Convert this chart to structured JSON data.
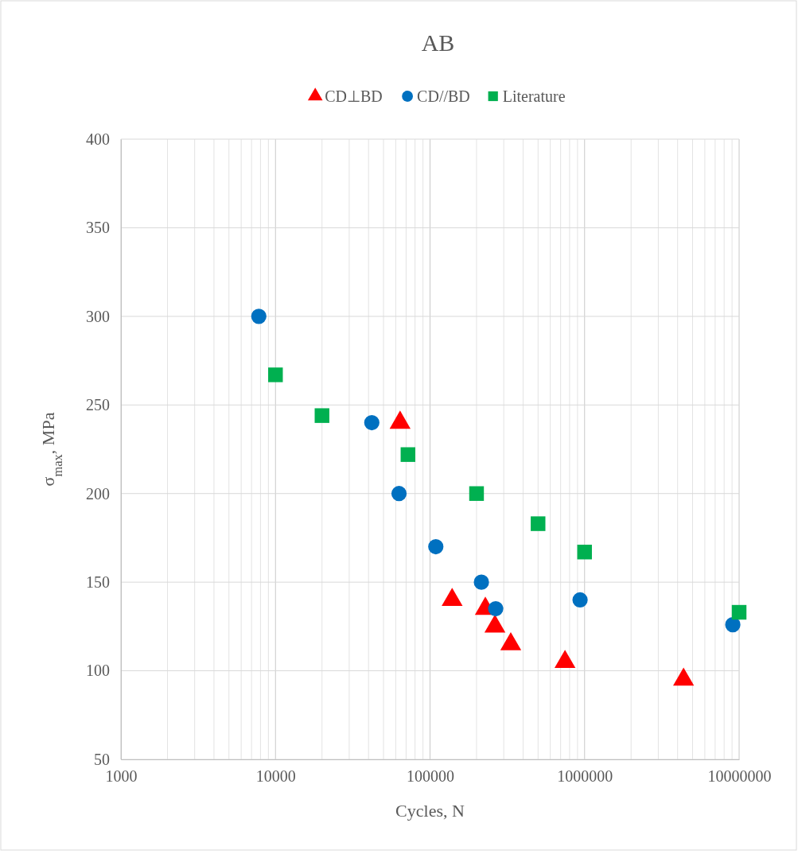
{
  "chart_data": {
    "type": "scatter",
    "title": "AB",
    "xlabel": "Cycles, N",
    "ylabel": "σ$_{max}$, MPa",
    "log": "x",
    "grid": true,
    "legend": "top",
    "xlim": [
      1000,
      10000000
    ],
    "xticks": [
      1000,
      10000,
      100000,
      1000000,
      10000000
    ],
    "ylim": [
      50,
      400
    ],
    "yticks": [
      50,
      100,
      150,
      200,
      250,
      300,
      350,
      400
    ],
    "series": [
      {
        "name": "CD⊥BD",
        "color": "#ff0000",
        "marker": "triangle",
        "x": [
          64000,
          139000,
          228000,
          263000,
          333000,
          747000,
          4370000
        ],
        "values": [
          240,
          140,
          135,
          125,
          115,
          105,
          95
        ]
      },
      {
        "name": "CD//BD",
        "color": "#0070c0",
        "marker": "circle",
        "x": [
          7800,
          42000,
          63000,
          109000,
          215000,
          266000,
          935000,
          9100000
        ],
        "values": [
          300,
          240,
          200,
          170,
          150,
          135,
          140,
          126
        ]
      },
      {
        "name": "Literature",
        "color": "#00b050",
        "marker": "square",
        "x": [
          10000,
          20000,
          72000,
          200000,
          500000,
          1000000,
          10000000
        ],
        "values": [
          267,
          244,
          222,
          200,
          183,
          167,
          133
        ]
      }
    ]
  }
}
